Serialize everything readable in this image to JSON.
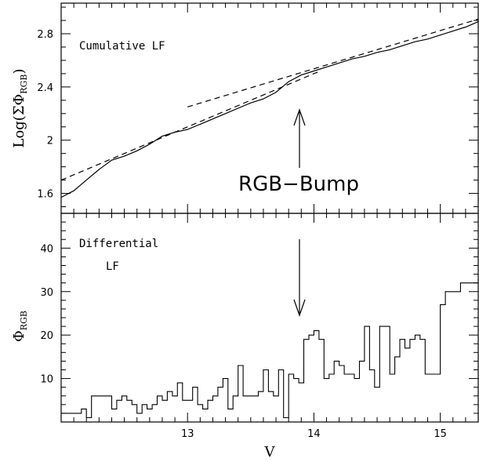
{
  "chart_data": [
    {
      "type": "line",
      "panel": "top",
      "label": "Cumulative LF",
      "ylabel": "Log(ΣΦ_RGB)",
      "ylabel_parts": {
        "prefix": "Log(ΣΦ",
        "sub": "RGB",
        "suffix": ")"
      },
      "xlim": [
        12.0,
        15.3
      ],
      "ylim": [
        1.45,
        3.03
      ],
      "yticks": [
        1.6,
        2,
        2.4,
        2.8
      ],
      "ytick_labels": [
        "1.6",
        "2",
        "2.4",
        "2.8"
      ],
      "annotation": "RGB−Bump",
      "annotation_x": 13.9,
      "series": [
        {
          "style": "solid",
          "x": [
            12.0,
            12.1,
            12.2,
            12.3,
            12.4,
            12.5,
            12.6,
            12.7,
            12.8,
            12.9,
            13.0,
            13.1,
            13.2,
            13.3,
            13.4,
            13.5,
            13.6,
            13.7,
            13.8,
            13.9,
            14.0,
            14.1,
            14.2,
            14.3,
            14.4,
            14.5,
            14.6,
            14.7,
            14.8,
            14.9,
            15.0,
            15.1,
            15.2,
            15.3
          ],
          "y": [
            1.57,
            1.62,
            1.7,
            1.78,
            1.85,
            1.88,
            1.92,
            1.97,
            2.03,
            2.06,
            2.08,
            2.12,
            2.16,
            2.2,
            2.24,
            2.28,
            2.31,
            2.36,
            2.44,
            2.49,
            2.52,
            2.55,
            2.58,
            2.61,
            2.63,
            2.66,
            2.68,
            2.71,
            2.74,
            2.76,
            2.79,
            2.82,
            2.85,
            2.89
          ]
        },
        {
          "style": "dashed",
          "x": [
            12.0,
            14.05
          ],
          "y": [
            1.7,
            2.52
          ]
        },
        {
          "style": "dashed",
          "x": [
            13.0,
            15.3
          ],
          "y": [
            2.25,
            2.91
          ]
        }
      ]
    },
    {
      "type": "bar",
      "panel": "bottom",
      "label_lines": [
        "Differential",
        "LF"
      ],
      "ylabel": "Φ_RGB",
      "ylabel_parts": {
        "prefix": "Φ",
        "sub": "RGB"
      },
      "xlabel": "V",
      "xlim": [
        12.0,
        15.3
      ],
      "ylim": [
        0,
        48
      ],
      "xticks": [
        13,
        14,
        15
      ],
      "xtick_labels": [
        "13",
        "14",
        "15"
      ],
      "yticks": [
        10,
        20,
        30,
        40
      ],
      "ytick_labels": [
        "10",
        "20",
        "30",
        "40"
      ],
      "bin_width": 0.04,
      "bin_start": 12.0,
      "values": [
        2,
        2,
        2,
        2,
        3,
        1,
        6,
        6,
        6,
        6,
        3,
        5,
        6,
        5,
        4,
        2,
        4,
        3,
        4,
        6,
        5,
        7,
        6,
        9,
        5,
        5,
        8,
        4,
        3,
        5,
        6,
        8,
        10,
        3,
        6,
        13,
        6,
        6,
        6,
        7,
        12,
        7,
        6,
        12,
        1,
        11,
        10,
        9,
        19,
        20,
        21,
        19,
        10,
        11,
        14,
        13,
        11,
        11,
        10,
        14,
        22,
        12,
        8,
        22,
        22,
        11,
        15,
        19,
        17,
        19,
        20,
        19,
        11,
        11,
        11,
        27,
        30,
        30,
        30,
        32,
        32,
        32,
        32
      ]
    }
  ]
}
